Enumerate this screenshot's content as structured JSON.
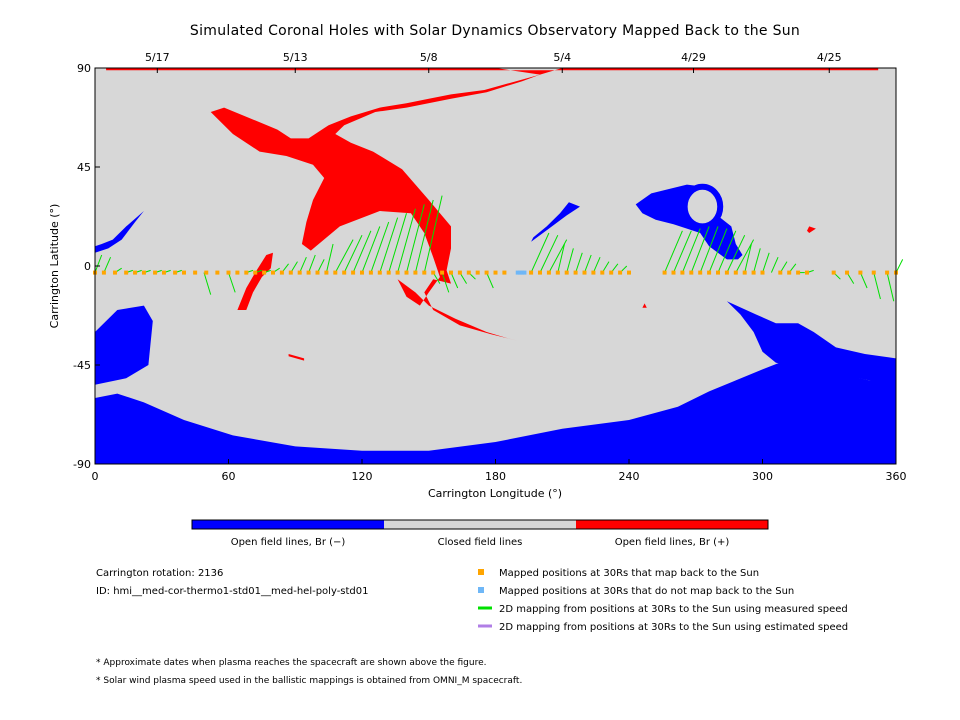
{
  "chart_data": {
    "type": "scatter",
    "title": "Simulated Coronal Holes with Solar Dynamics Observatory Mapped Back to the Sun",
    "xlabel": "Carrington Longitude (°)",
    "ylabel": "Carrington Latitude (°)",
    "xlim": [
      0,
      360
    ],
    "ylim": [
      -90,
      90
    ],
    "x_ticks": [
      0,
      60,
      120,
      180,
      240,
      300,
      360
    ],
    "y_ticks": [
      -90,
      -45,
      0,
      45,
      90
    ],
    "top_axis_dates": [
      {
        "label": "5/17",
        "lon": 28
      },
      {
        "label": "5/13",
        "lon": 90
      },
      {
        "label": "5/8",
        "lon": 150
      },
      {
        "label": "5/4",
        "lon": 210
      },
      {
        "label": "4/29",
        "lon": 269
      },
      {
        "label": "4/25",
        "lon": 330
      }
    ],
    "colors": {
      "closed": "#d7d7d7",
      "open_negative": "#0000ff",
      "open_positive": "#ff0000",
      "mapped_back": "#ffa500",
      "not_mapped": "#6fb7f7",
      "measured_speed": "#00e000",
      "estimated_speed": "#b07ee6"
    },
    "colorbar_labels": [
      "Open field lines, Br (−)",
      "Closed field lines",
      "Open field lines, Br (+)"
    ],
    "regions": [
      {
        "polarity": "positive",
        "points": [
          [
            5,
            90
          ],
          [
            180,
            90
          ],
          [
            200,
            87
          ],
          [
            175,
            80
          ],
          [
            160,
            78
          ],
          [
            150,
            76
          ],
          [
            140,
            74
          ],
          [
            128,
            72
          ],
          [
            115,
            68
          ],
          [
            105,
            64
          ],
          [
            96,
            58
          ],
          [
            88,
            58
          ],
          [
            82,
            62
          ],
          [
            70,
            67
          ],
          [
            58,
            72
          ],
          [
            52,
            70
          ],
          [
            62,
            60
          ],
          [
            74,
            52
          ],
          [
            86,
            50
          ],
          [
            98,
            46
          ],
          [
            103,
            40
          ],
          [
            98,
            30
          ],
          [
            95,
            20
          ],
          [
            93,
            10
          ],
          [
            97,
            7
          ],
          [
            110,
            18
          ],
          [
            128,
            25
          ],
          [
            142,
            24
          ],
          [
            148,
            15
          ],
          [
            152,
            4
          ],
          [
            155,
            -5
          ],
          [
            150,
            -12
          ],
          [
            146,
            -18
          ],
          [
            140,
            -14
          ],
          [
            136,
            -6
          ],
          [
            144,
            -12
          ],
          [
            150,
            -18
          ],
          [
            162,
            -24
          ],
          [
            176,
            -30
          ],
          [
            186,
            -33
          ],
          [
            190,
            -34
          ],
          [
            178,
            -31
          ],
          [
            164,
            -27
          ],
          [
            152,
            -20
          ],
          [
            148,
            -12
          ],
          [
            152,
            -6
          ],
          [
            160,
            -8
          ],
          [
            158,
            -2
          ],
          [
            160,
            8
          ],
          [
            160,
            18
          ],
          [
            150,
            30
          ],
          [
            138,
            44
          ],
          [
            125,
            52
          ],
          [
            115,
            56
          ],
          [
            108,
            60
          ],
          [
            112,
            64
          ],
          [
            126,
            70
          ],
          [
            140,
            72
          ],
          [
            160,
            76
          ],
          [
            176,
            79
          ],
          [
            192,
            84
          ],
          [
            200,
            87
          ],
          [
            210,
            90
          ],
          [
            352,
            90
          ],
          [
            352,
            89
          ],
          [
            190,
            89
          ],
          [
            5,
            89
          ]
        ]
      },
      {
        "polarity": "positive",
        "points": [
          [
            64,
            -20
          ],
          [
            68,
            -10
          ],
          [
            72,
            -3
          ],
          [
            77,
            5
          ],
          [
            80,
            6
          ],
          [
            79,
            -1
          ],
          [
            75,
            -5
          ],
          [
            71,
            -12
          ],
          [
            68,
            -20
          ]
        ]
      },
      {
        "polarity": "positive",
        "points": [
          [
            87,
            -40
          ],
          [
            94,
            -42
          ],
          [
            94,
            -43
          ],
          [
            87,
            -41
          ]
        ]
      },
      {
        "polarity": "positive",
        "points": [
          [
            247,
            -17
          ],
          [
            248,
            -19
          ],
          [
            246,
            -19
          ]
        ]
      },
      {
        "polarity": "positive",
        "points": [
          [
            321,
            15
          ],
          [
            324,
            17
          ],
          [
            321,
            18
          ],
          [
            320,
            16
          ]
        ]
      },
      {
        "polarity": "negative",
        "points": [
          [
            243,
            28
          ],
          [
            250,
            33
          ],
          [
            258,
            35
          ],
          [
            266,
            37
          ],
          [
            274,
            36
          ],
          [
            280,
            33
          ],
          [
            282,
            29
          ],
          [
            281,
            22
          ],
          [
            286,
            18
          ],
          [
            288,
            10
          ],
          [
            291,
            5
          ],
          [
            289,
            3
          ],
          [
            284,
            3
          ],
          [
            276,
            9
          ],
          [
            272,
            15
          ],
          [
            266,
            17
          ],
          [
            260,
            19
          ],
          [
            252,
            21
          ],
          [
            246,
            24
          ]
        ]
      },
      {
        "polarity": "negative",
        "points": [
          [
            196,
            11
          ],
          [
            204,
            17
          ],
          [
            212,
            23
          ],
          [
            218,
            27
          ],
          [
            213,
            29
          ],
          [
            209,
            24
          ],
          [
            203,
            18
          ],
          [
            197,
            13
          ]
        ]
      },
      {
        "polarity": "negative",
        "points": [
          [
            0,
            6
          ],
          [
            6,
            8
          ],
          [
            12,
            12
          ],
          [
            18,
            20
          ],
          [
            22,
            25
          ],
          [
            14,
            18
          ],
          [
            8,
            12
          ],
          [
            3,
            10
          ],
          [
            0,
            9
          ]
        ]
      },
      {
        "polarity": "negative",
        "points": [
          [
            0,
            -30
          ],
          [
            10,
            -20
          ],
          [
            22,
            -18
          ],
          [
            26,
            -25
          ],
          [
            24,
            -45
          ],
          [
            14,
            -51
          ],
          [
            0,
            -54
          ]
        ]
      },
      {
        "polarity": "negative",
        "points": [
          [
            10,
            -58
          ],
          [
            22,
            -62
          ],
          [
            40,
            -70
          ],
          [
            62,
            -77
          ],
          [
            90,
            -82
          ],
          [
            120,
            -84
          ],
          [
            150,
            -84
          ],
          [
            180,
            -80
          ],
          [
            210,
            -74
          ],
          [
            240,
            -70
          ],
          [
            262,
            -64
          ],
          [
            276,
            -57
          ],
          [
            288,
            -52
          ],
          [
            300,
            -47
          ],
          [
            310,
            -43
          ],
          [
            320,
            -45
          ],
          [
            335,
            -49
          ],
          [
            348,
            -52
          ],
          [
            360,
            -52
          ],
          [
            360,
            -90
          ],
          [
            0,
            -90
          ],
          [
            0,
            -60
          ]
        ]
      },
      {
        "polarity": "negative",
        "points": [
          [
            284,
            -16
          ],
          [
            290,
            -22
          ],
          [
            296,
            -30
          ],
          [
            300,
            -39
          ],
          [
            306,
            -44
          ],
          [
            318,
            -46
          ],
          [
            333,
            -49
          ],
          [
            348,
            -52
          ],
          [
            360,
            -53
          ],
          [
            360,
            -42
          ],
          [
            346,
            -40
          ],
          [
            333,
            -37
          ],
          [
            323,
            -30
          ],
          [
            316,
            -26
          ],
          [
            306,
            -26
          ],
          [
            297,
            -22
          ]
        ]
      }
    ],
    "loop_feature": {
      "polarity": "negative",
      "lon": 273,
      "lat": 27,
      "r_lon": 8,
      "r_lat": 9
    },
    "mapped_positions_lon": [
      0,
      4,
      9,
      14,
      18,
      22,
      27,
      31,
      36,
      40,
      45,
      50,
      55,
      60,
      64,
      68,
      72,
      76,
      80,
      84,
      88,
      92,
      96,
      100,
      104,
      108,
      112,
      116,
      120,
      124,
      128,
      132,
      136,
      140,
      144,
      148,
      152,
      156,
      160,
      164,
      168,
      172,
      176,
      180,
      184,
      196,
      200,
      204,
      208,
      212,
      216,
      220,
      224,
      228,
      232,
      236,
      240,
      256,
      260,
      264,
      268,
      272,
      276,
      280,
      284,
      288,
      292,
      296,
      300,
      308,
      312,
      316,
      320,
      332,
      338,
      344,
      350,
      356,
      360
    ],
    "not_mapped_positions_lon": [
      190,
      191,
      192,
      193
    ],
    "measured_speed_mappings": [
      [
        0,
        5
      ],
      [
        4,
        4
      ],
      [
        9,
        -1
      ],
      [
        14,
        -2
      ],
      [
        18,
        -2
      ],
      [
        22,
        -2
      ],
      [
        27,
        -2
      ],
      [
        31,
        -2
      ],
      [
        36,
        -2
      ],
      [
        49,
        -13
      ],
      [
        60,
        -12
      ],
      [
        68,
        -2
      ],
      [
        72,
        -2
      ],
      [
        76,
        -2
      ],
      [
        80,
        -1
      ],
      [
        84,
        1
      ],
      [
        88,
        2
      ],
      [
        92,
        4
      ],
      [
        96,
        5
      ],
      [
        100,
        3
      ],
      [
        104,
        10
      ],
      [
        108,
        12
      ],
      [
        112,
        14
      ],
      [
        116,
        16
      ],
      [
        120,
        18
      ],
      [
        124,
        20
      ],
      [
        128,
        22
      ],
      [
        132,
        24
      ],
      [
        136,
        26
      ],
      [
        140,
        28
      ],
      [
        144,
        30
      ],
      [
        148,
        32
      ],
      [
        152,
        -8
      ],
      [
        156,
        -12
      ],
      [
        160,
        -10
      ],
      [
        164,
        -8
      ],
      [
        168,
        -6
      ],
      [
        176,
        -10
      ],
      [
        196,
        15
      ],
      [
        200,
        14
      ],
      [
        204,
        12
      ],
      [
        208,
        10
      ],
      [
        212,
        8
      ],
      [
        216,
        6
      ],
      [
        220,
        5
      ],
      [
        224,
        4
      ],
      [
        228,
        2
      ],
      [
        232,
        1
      ],
      [
        236,
        0
      ],
      [
        256,
        16
      ],
      [
        260,
        16
      ],
      [
        264,
        17
      ],
      [
        268,
        18
      ],
      [
        272,
        18
      ],
      [
        276,
        17
      ],
      [
        280,
        16
      ],
      [
        284,
        14
      ],
      [
        288,
        12
      ],
      [
        292,
        10
      ],
      [
        296,
        8
      ],
      [
        300,
        6
      ],
      [
        304,
        4
      ],
      [
        308,
        2
      ],
      [
        312,
        1
      ],
      [
        316,
        -3
      ],
      [
        320,
        -2
      ],
      [
        332,
        -6
      ],
      [
        338,
        -8
      ],
      [
        344,
        -10
      ],
      [
        350,
        -15
      ],
      [
        356,
        -16
      ],
      [
        360,
        3
      ]
    ],
    "legend": [
      {
        "label": "Mapped positions at 30Rs that map back to the Sun",
        "kind": "square",
        "color": "#ffa500"
      },
      {
        "label": "Mapped positions at 30Rs that do not map back to the Sun",
        "kind": "square",
        "color": "#6fb7f7"
      },
      {
        "label": "2D mapping from positions at 30Rs to the Sun using measured speed",
        "kind": "line",
        "color": "#00e000"
      },
      {
        "label": "2D mapping from positions at 30Rs to the Sun using estimated speed",
        "kind": "line",
        "color": "#b07ee6"
      }
    ]
  },
  "info": {
    "rotation_label": "Carrington rotation: 2136",
    "id_label": "ID: hmi__med-cor-thermo1-std01__med-hel-poly-std01"
  },
  "notes": [
    "* Approximate dates when plasma reaches the spacecraft are shown above the figure.",
    "* Solar wind plasma speed used in the ballistic mappings is obtained from OMNI_M spacecraft."
  ]
}
